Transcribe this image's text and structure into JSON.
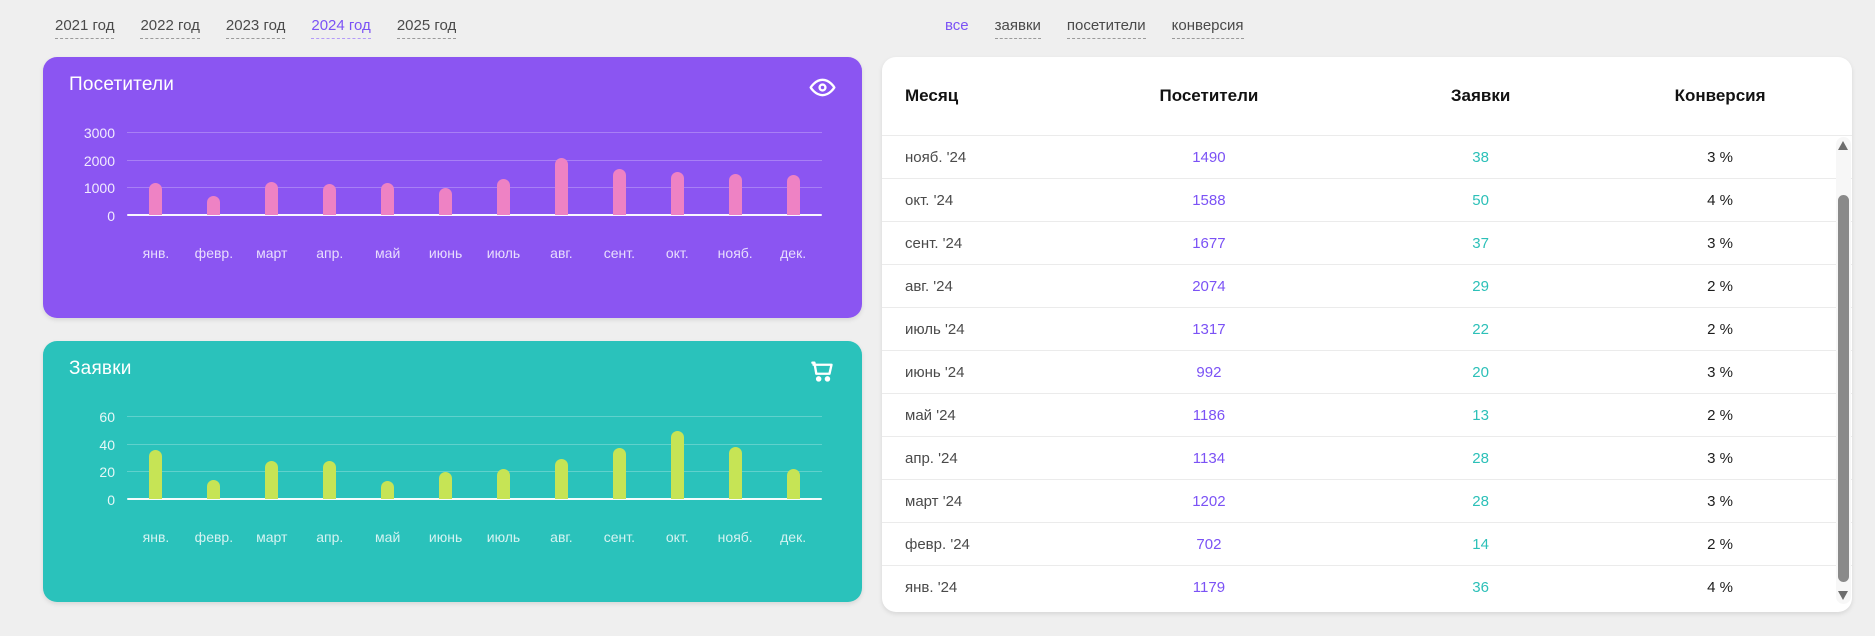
{
  "colors": {
    "page_background": "#efefef",
    "accent_purple": "#7b52f5",
    "accent_teal": "#2cc0b8",
    "visitors_card_bg": "#8b55f2",
    "leads_card_bg": "#2ac2bb",
    "visitors_bar": "#ee82c4",
    "leads_bar": "#c6e455",
    "tab_inactive": "#4a4a4a"
  },
  "year_tabs": {
    "items": [
      {
        "key": "2021",
        "label": "2021 год",
        "active": false
      },
      {
        "key": "2022",
        "label": "2022 год",
        "active": false
      },
      {
        "key": "2023",
        "label": "2023 год",
        "active": false
      },
      {
        "key": "2024",
        "label": "2024 год",
        "active": true
      },
      {
        "key": "2025",
        "label": "2025 год",
        "active": false
      }
    ]
  },
  "filter_tabs": {
    "items": [
      {
        "key": "all",
        "label": "все",
        "active": true
      },
      {
        "key": "leads",
        "label": "заявки",
        "active": false
      },
      {
        "key": "visitors",
        "label": "посетители",
        "active": false
      },
      {
        "key": "conversion",
        "label": "конверсия",
        "active": false
      }
    ]
  },
  "cards": {
    "visitors": {
      "title": "Посетители",
      "icon": "eye-icon",
      "background": "#8b55f2"
    },
    "leads": {
      "title": "Заявки",
      "icon": "cart-icon",
      "background": "#2ac2bb"
    }
  },
  "chart_data": [
    {
      "type": "bar",
      "name": "visitors",
      "title": "Посетители",
      "categories": [
        "янв.",
        "февр.",
        "март",
        "апр.",
        "май",
        "июнь",
        "июль",
        "авг.",
        "сент.",
        "окт.",
        "нояб.",
        "дек."
      ],
      "values": [
        1179,
        702,
        1202,
        1134,
        1186,
        992,
        1317,
        2074,
        1677,
        1588,
        1490,
        1450
      ],
      "ylim": [
        0,
        3000
      ],
      "yticks": [
        0,
        1000,
        2000,
        3000
      ],
      "bar_color": "#ee82c4",
      "grid": true,
      "legend": "none"
    },
    {
      "type": "bar",
      "name": "leads",
      "title": "Заявки",
      "categories": [
        "янв.",
        "февр.",
        "март",
        "апр.",
        "май",
        "июнь",
        "июль",
        "авг.",
        "сент.",
        "окт.",
        "нояб.",
        "дек."
      ],
      "values": [
        36,
        14,
        28,
        28,
        13,
        20,
        22,
        29,
        37,
        50,
        38,
        22
      ],
      "ylim": [
        0,
        60
      ],
      "yticks": [
        0,
        20,
        40,
        60
      ],
      "bar_color": "#c6e455",
      "grid": true,
      "legend": "none"
    }
  ],
  "table": {
    "columns": [
      "Месяц",
      "Посетители",
      "Заявки",
      "Конверсия"
    ],
    "rows": [
      {
        "month": "нояб. '24",
        "visitors": "1490",
        "leads": "38",
        "conversion": "3 %"
      },
      {
        "month": "окт. '24",
        "visitors": "1588",
        "leads": "50",
        "conversion": "4 %"
      },
      {
        "month": "сент. '24",
        "visitors": "1677",
        "leads": "37",
        "conversion": "3 %"
      },
      {
        "month": "авг. '24",
        "visitors": "2074",
        "leads": "29",
        "conversion": "2 %"
      },
      {
        "month": "июль '24",
        "visitors": "1317",
        "leads": "22",
        "conversion": "2 %"
      },
      {
        "month": "июнь '24",
        "visitors": "992",
        "leads": "20",
        "conversion": "3 %"
      },
      {
        "month": "май '24",
        "visitors": "1186",
        "leads": "13",
        "conversion": "2 %"
      },
      {
        "month": "апр. '24",
        "visitors": "1134",
        "leads": "28",
        "conversion": "3 %"
      },
      {
        "month": "март '24",
        "visitors": "1202",
        "leads": "28",
        "conversion": "3 %"
      },
      {
        "month": "февр. '24",
        "visitors": "702",
        "leads": "14",
        "conversion": "2 %"
      },
      {
        "month": "янв. '24",
        "visitors": "1179",
        "leads": "36",
        "conversion": "4 %"
      }
    ]
  }
}
